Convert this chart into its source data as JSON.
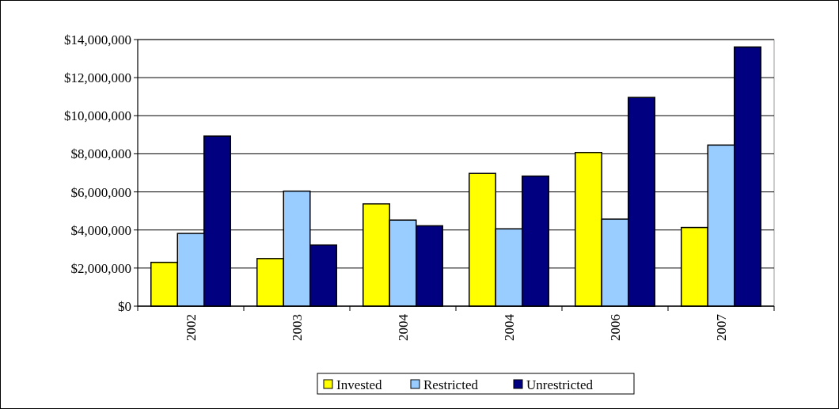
{
  "chart_data": {
    "type": "bar",
    "categories": [
      "2002",
      "2003",
      "2004",
      "2004",
      "2006",
      "2007"
    ],
    "series": [
      {
        "name": "Invested",
        "color": "#ffff00",
        "values": [
          2300000,
          2500000,
          5370000,
          6970000,
          8070000,
          4130000
        ]
      },
      {
        "name": "Restricted",
        "color": "#99ccff",
        "values": [
          3820000,
          6040000,
          4520000,
          4060000,
          4570000,
          8460000
        ]
      },
      {
        "name": "Unrestricted",
        "color": "#000080",
        "values": [
          8930000,
          3210000,
          4220000,
          6830000,
          10960000,
          13610000
        ]
      }
    ],
    "ylim": [
      0,
      14000000
    ],
    "yticks": [
      {
        "value": 0,
        "label": "$0"
      },
      {
        "value": 2000000,
        "label": "$2,000,000"
      },
      {
        "value": 4000000,
        "label": "$4,000,000"
      },
      {
        "value": 6000000,
        "label": "$6,000,000"
      },
      {
        "value": 8000000,
        "label": "$8,000,000"
      },
      {
        "value": 10000000,
        "label": "$10,000,000"
      },
      {
        "value": 12000000,
        "label": "$12,000,000"
      },
      {
        "value": 14000000,
        "label": "$14,000,000"
      }
    ],
    "grid": "y",
    "legend": "bottom"
  }
}
